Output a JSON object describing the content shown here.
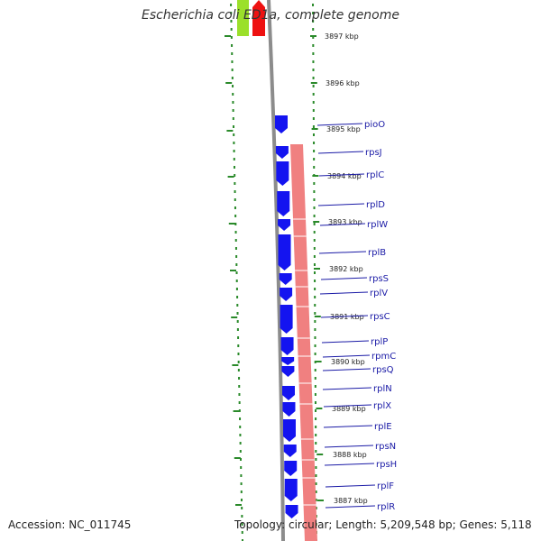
{
  "title": "Escherichia coli ED1a, complete genome",
  "footer": {
    "accession": "Accession: NC_011745",
    "stats": "Topology: circular; Length: 5,209,548 bp; Genes: 5,118"
  },
  "colors": {
    "cds": "#1414f0",
    "rrna_band": "#f08080",
    "gc_dots": "#2a8a2a",
    "label_line": "#1a1aa6",
    "backbone": "#8c8c8c",
    "top_green": "#9be02a",
    "top_red": "#ee1111"
  },
  "ticks": [
    {
      "label": "3897 kbp",
      "kbp": 3897
    },
    {
      "label": "3896 kbp",
      "kbp": 3896
    },
    {
      "label": "3895 kbp",
      "kbp": 3895
    },
    {
      "label": "3894 kbp",
      "kbp": 3894
    },
    {
      "label": "3893 kbp",
      "kbp": 3893
    },
    {
      "label": "3892 kbp",
      "kbp": 3892
    },
    {
      "label": "3891 kbp",
      "kbp": 3891
    },
    {
      "label": "3890 kbp",
      "kbp": 3890
    },
    {
      "label": "3889 kbp",
      "kbp": 3889
    },
    {
      "label": "3888 kbp",
      "kbp": 3888
    },
    {
      "label": "3887 kbp",
      "kbp": 3887
    }
  ],
  "genes": [
    {
      "name": "pioO"
    },
    {
      "name": "rpsJ"
    },
    {
      "name": "rplC"
    },
    {
      "name": "rplD"
    },
    {
      "name": "rplW"
    },
    {
      "name": "rplB"
    },
    {
      "name": "rpsS"
    },
    {
      "name": "rplV"
    },
    {
      "name": "rpsC"
    },
    {
      "name": "rplP"
    },
    {
      "name": "rpmC"
    },
    {
      "name": "rpsQ"
    },
    {
      "name": "rplN"
    },
    {
      "name": "rplX"
    },
    {
      "name": "rplE"
    },
    {
      "name": "rpsN"
    },
    {
      "name": "rpsH"
    },
    {
      "name": "rplF"
    },
    {
      "name": "rplR"
    }
  ]
}
